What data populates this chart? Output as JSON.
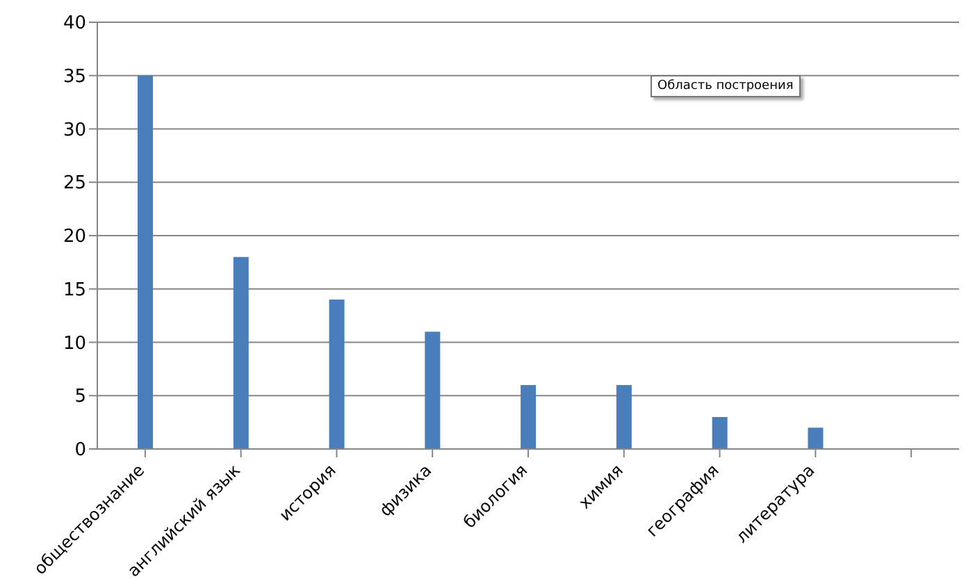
{
  "chart_data": {
    "type": "bar",
    "categories": [
      "обществознание",
      "английский язык",
      "история",
      "физика",
      "биология",
      "химия",
      "география",
      "литература",
      null
    ],
    "values": [
      35,
      18,
      14,
      11,
      6,
      6,
      3,
      2,
      null
    ],
    "color": "#4a7ebb",
    "ylim": [
      0,
      40
    ],
    "yticks": [
      0,
      5,
      10,
      15,
      20,
      25,
      30,
      35,
      40
    ],
    "grid": "y",
    "legend": false,
    "annotations": [
      "Область построения"
    ]
  }
}
